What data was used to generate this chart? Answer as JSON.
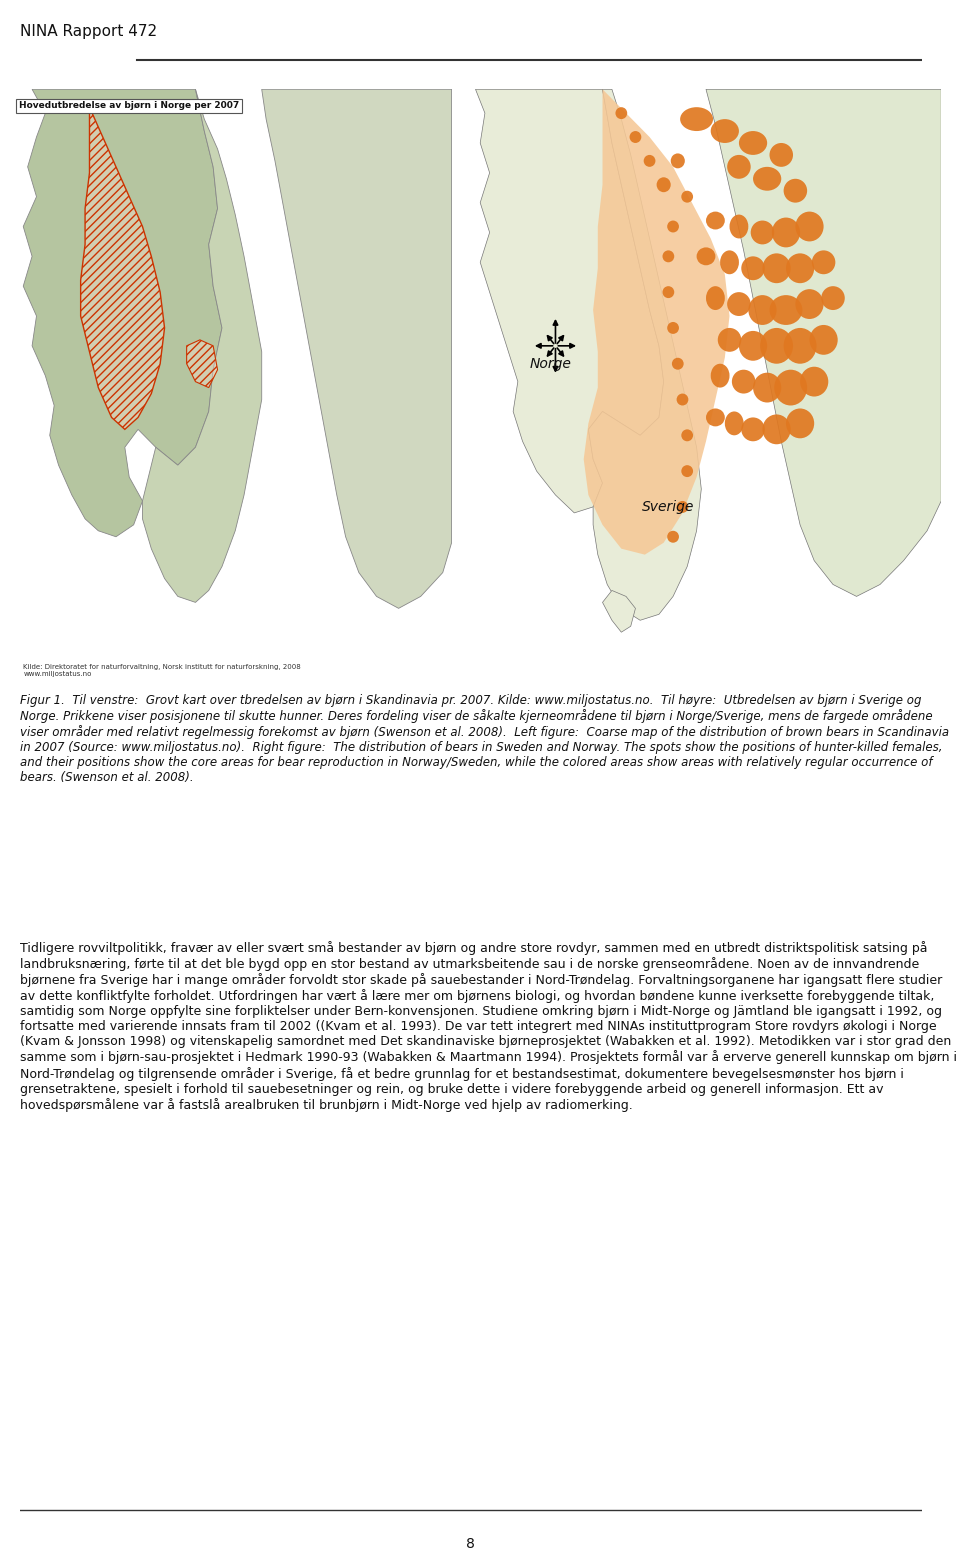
{
  "page_bg": "#ffffff",
  "header_text": "NINA Rapport 472",
  "header_fontsize": 11,
  "map_left_title": "Hovedutbredelse av bjørn i Norge per 2007",
  "map_left_source": "Kilde: Direktoratet for naturforvaltning, Norsk institutt for naturforskning, 2008\nwww.miljostatus.no",
  "figure_caption": "Figur 1.  Til venstre:  Grovt kart over tbredelsen av bjørn i Skandinavia pr. 2007. Kilde: www.miljostatus.no.  Til høyre:  Utbredelsen av bjørn i Sverige og Norge. Prikkene viser posisjonene til skutte hunner. Deres fordeling viser de såkalte kjerneområdene til bjørn i Norge/Sverige, mens de fargede områdene viser områder med relativt regelmessig forekomst av bjørn (Swenson et al. 2008).  Left figure:  Coarse map of the distribution of brown bears in Scandinavia in 2007 (Source: www.miljostatus.no).  Right figure:  The distribution of bears in Sweden and Norway. The spots show the positions of hunter-killed females, and their positions show the core areas for bear reproduction in Norway/Sweden, while the colored areas show areas with relatively regular occurrence of bears. (Swenson et al. 2008).",
  "body_text": "Tidligere rovviltpolitikk, fravær av eller svært små bestander av bjørn og andre store rovdyr, sammen med en utbredt distriktspolitisk satsing på landbruksnæring, førte til at det ble bygd opp en stor bestand av utmarksbeitende sau i de norske grenseområdene. Noen av de innvandrende bjørnene fra Sverige har i mange områder forvoldt stor skade på sauebestander i Nord-Trøndelag. Forvaltningsorganene har igangsatt flere studier av dette konfliktfylte forholdet. Utfordringen har vært å lære mer om bjørnens biologi, og hvordan bøndene kunne iverksette forebyggende tiltak, samtidig som Norge oppfylte sine forpliktelser under Bern-konvensjonen. Studiene omkring bjørn i Midt-Norge og Jämtland ble igangsatt i 1992, og fortsatte med varierende innsats fram til 2002 ((Kvam et al. 1993). De var tett integrert med NINAs instituttprogram Store rovdyrs økologi i Norge (Kvam & Jonsson 1998) og vitenskapelig samordnet med Det skandinaviske bjørneprosjektet (Wabakken et al. 1992). Metodikken var i stor grad den samme som i bjørn-sau-prosjektet i Hedmark 1990-93 (Wabakken & Maartmann 1994). Prosjektets formål var å erverve generell kunnskap om bjørn i Nord-Trøndelag og tilgrensende områder i Sverige, få et bedre grunnlag for et bestandsestimat, dokumentere bevegelsesmønster hos bjørn i grensetraktene, spesielt i forhold til sauebesetninger og rein, og bruke dette i videre forebyggende arbeid og generell informasjon. Ett av hovedspørsmålene var å fastslå arealbruken til brunbjørn i Midt-Norge ved hjelp av radiomerking.",
  "page_number": "8",
  "left_map_color_land_norway": "#b5c5a0",
  "left_map_color_land_sweden": "#c8d4b4",
  "left_map_color_land_finland": "#d0d8c0",
  "left_map_bg": "#dedad0",
  "left_map_color_hatch": "#cc3300",
  "right_map_color_sea": "#a8dde8",
  "right_map_color_land": "#e8ecd8",
  "right_map_color_light_orange": "#f5c896",
  "right_map_color_dark_orange": "#e07820"
}
